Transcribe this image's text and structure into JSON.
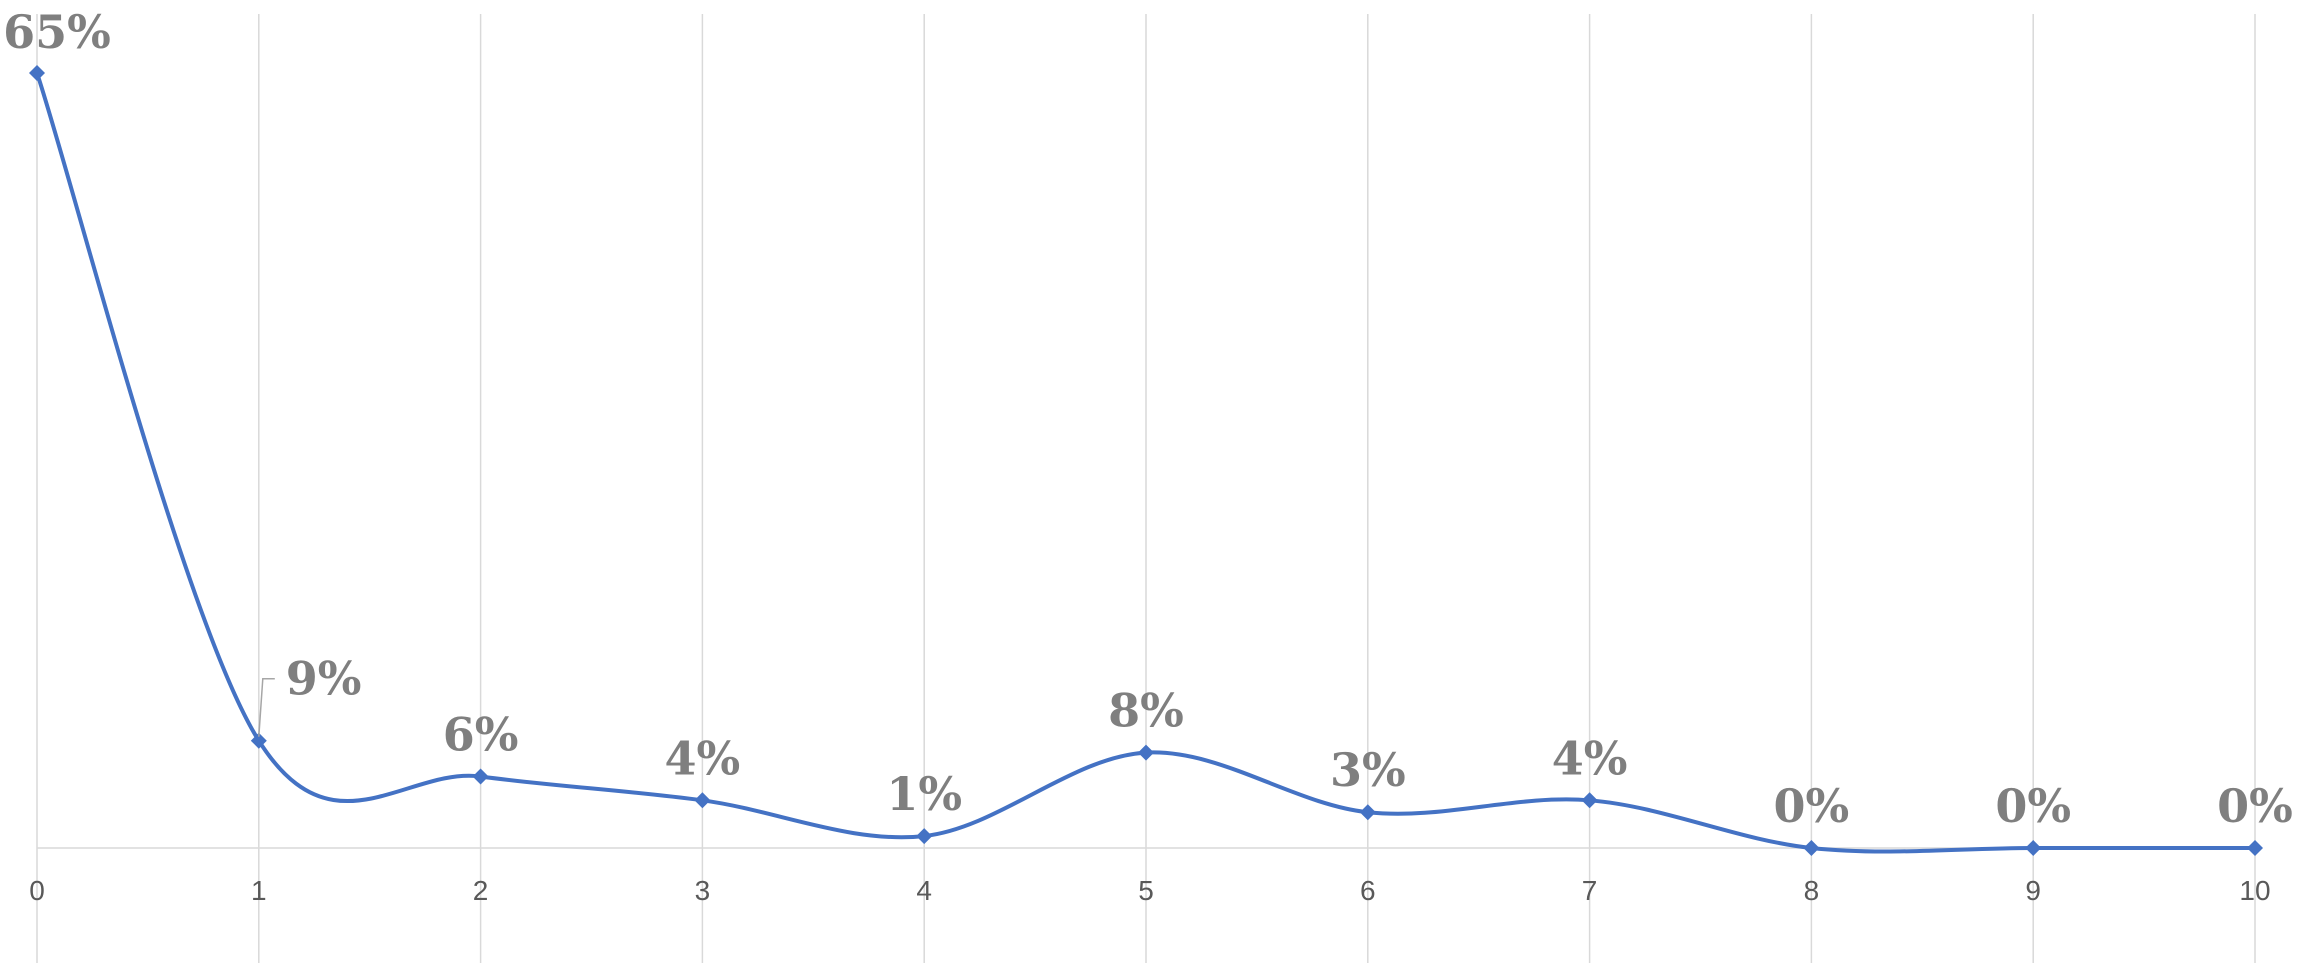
{
  "chart_data": {
    "type": "line",
    "smooth": true,
    "x": [
      0,
      1,
      2,
      3,
      4,
      5,
      6,
      7,
      8,
      9,
      10
    ],
    "series": [
      {
        "values": [
          0.65,
          0.09,
          0.06,
          0.04,
          0.01,
          0.08,
          0.03,
          0.04,
          0.0,
          0.0,
          0.0
        ],
        "data_labels": [
          "65%",
          "9%",
          "6%",
          "4%",
          "1%",
          "8%",
          "3%",
          "4%",
          "0%",
          "0%",
          "0%"
        ],
        "color": "#4472c4",
        "marker": "diamond"
      }
    ],
    "title": "",
    "xlabel": "",
    "ylabel": "",
    "ylim": [
      0,
      0.7
    ],
    "grid": "vertical",
    "legend": "none",
    "gridline_color": "#d9d9d9",
    "label_color": "#7f7f7f",
    "tick_color": "#595959"
  }
}
